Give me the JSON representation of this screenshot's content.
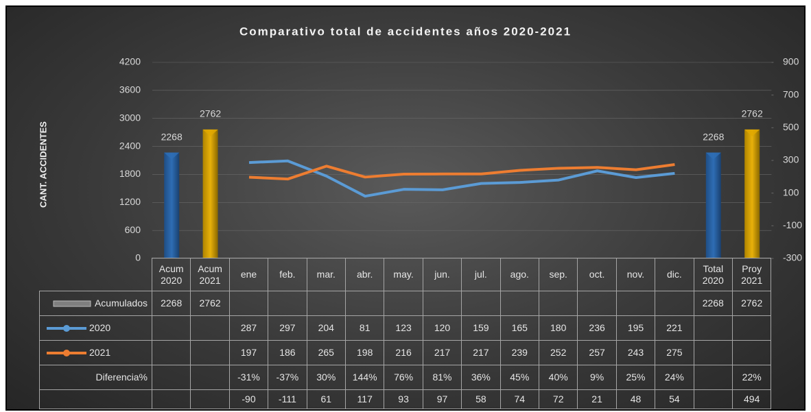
{
  "chart_data": {
    "type": "combo",
    "title": "Comparativo total de accidentes años 2020-2021",
    "y_label": "CANT. ACCIDENTES",
    "categories": [
      "Acum 2020",
      "Acum 2021",
      "ene",
      "feb.",
      "mar.",
      "abr.",
      "may.",
      "jun.",
      "jul.",
      "ago.",
      "sep.",
      "oct.",
      "nov.",
      "dic.",
      "Total 2020",
      "Proy 2021"
    ],
    "ylim": [
      0,
      4200
    ],
    "yticks": [
      0,
      600,
      1200,
      1800,
      2400,
      3000,
      3600,
      4200
    ],
    "y2lim": [
      -300,
      900
    ],
    "y2ticks": [
      -300,
      -100,
      100,
      300,
      500,
      700,
      900
    ],
    "grid": true,
    "series": [
      {
        "name": "Acumulados",
        "type": "bar",
        "color": "#7f7f7f",
        "colors": [
          "#2e6db4",
          "#e0a800",
          null,
          null,
          null,
          null,
          null,
          null,
          null,
          null,
          null,
          null,
          null,
          null,
          "#2e6db4",
          "#e0a800"
        ],
        "values": [
          2268,
          2762,
          null,
          null,
          null,
          null,
          null,
          null,
          null,
          null,
          null,
          null,
          null,
          null,
          2268,
          2762
        ]
      },
      {
        "name": "2020",
        "type": "line",
        "axis": "y2",
        "color": "#5b9bd5",
        "values": [
          null,
          null,
          287,
          297,
          204,
          81,
          123,
          120,
          159,
          165,
          180,
          236,
          195,
          221,
          null,
          null
        ]
      },
      {
        "name": "2021",
        "type": "line",
        "axis": "y2",
        "color": "#ed7d31",
        "values": [
          null,
          null,
          197,
          186,
          265,
          198,
          216,
          217,
          217,
          239,
          252,
          257,
          243,
          275,
          null,
          null
        ]
      }
    ],
    "table_rows": [
      {
        "name": "Diferencia%",
        "values": [
          null,
          null,
          -31,
          -37,
          30,
          144,
          76,
          81,
          36,
          45,
          40,
          9,
          25,
          24,
          null,
          22
        ],
        "value_labels": [
          null,
          null,
          "-31%",
          "-37%",
          "30%",
          "144%",
          "76%",
          "81%",
          "36%",
          "45%",
          "40%",
          "9%",
          "25%",
          "24%",
          null,
          "22%"
        ]
      },
      {
        "values": [
          null,
          null,
          -90,
          -111,
          61,
          117,
          93,
          97,
          58,
          74,
          72,
          21,
          48,
          54,
          null,
          494
        ]
      }
    ]
  }
}
